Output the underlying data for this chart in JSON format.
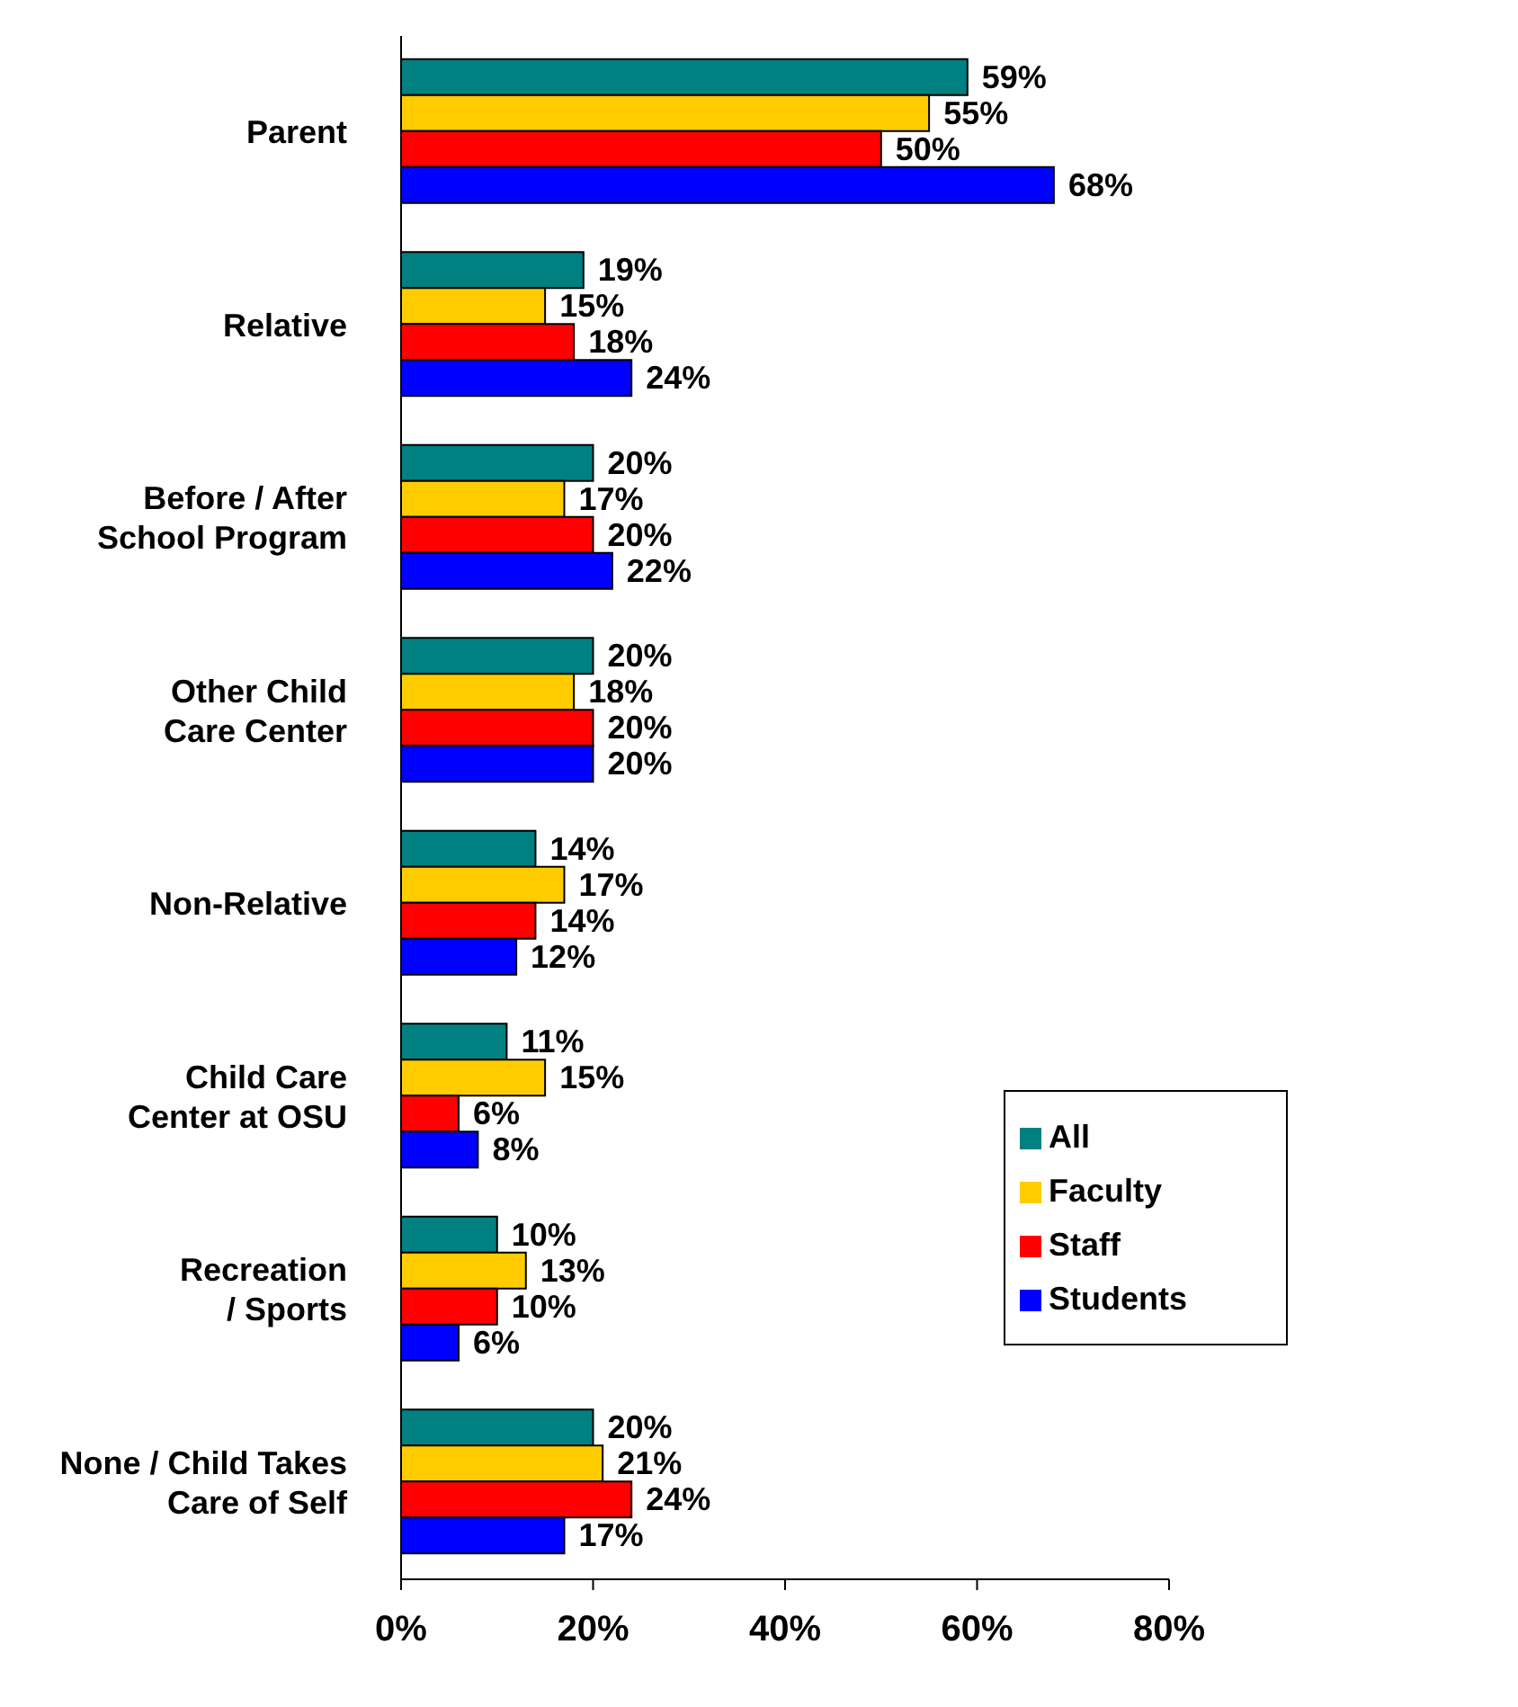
{
  "chart_data": {
    "type": "bar",
    "orientation": "horizontal",
    "categories": [
      "Parent",
      "Relative",
      "Before / After School Program",
      "Other Child Care Center",
      "Non-Relative",
      "Child Care Center at OSU",
      "Recreation / Sports",
      "None / Child Takes Care of Self"
    ],
    "series": [
      {
        "name": "All",
        "color": "#008080",
        "values": [
          59,
          19,
          20,
          20,
          14,
          11,
          10,
          20
        ],
        "value_labels": [
          "59%",
          "19%",
          "20%",
          "20%",
          "14%",
          "11%",
          "10%",
          "20%"
        ]
      },
      {
        "name": "Faculty",
        "color": "#ffcc00",
        "values": [
          55,
          15,
          17,
          18,
          17,
          15,
          13,
          21
        ],
        "value_labels": [
          "55%",
          "15%",
          "17%",
          "18%",
          "17%",
          "15%",
          "13%",
          "21%"
        ]
      },
      {
        "name": "Staff",
        "color": "#ff0000",
        "values": [
          50,
          18,
          20,
          20,
          14,
          6,
          10,
          24
        ],
        "value_labels": [
          "50%",
          "18%",
          "20%",
          "20%",
          "14%",
          "6%",
          "10%",
          "24%"
        ]
      },
      {
        "name": "Students",
        "color": "#0000ff",
        "values": [
          68,
          24,
          22,
          20,
          12,
          8,
          6,
          17
        ],
        "value_labels": [
          "68%",
          "24%",
          "22%",
          "20%",
          "12%",
          "8%",
          "6%",
          "17%"
        ]
      }
    ],
    "xlim": [
      0,
      80
    ],
    "xticks": [
      {
        "value": 0,
        "label": "0%"
      },
      {
        "value": 20,
        "label": "20%"
      },
      {
        "value": 40,
        "label": "40%"
      },
      {
        "value": 60,
        "label": "60%"
      },
      {
        "value": 80,
        "label": "80%"
      }
    ],
    "grid": false,
    "legend": "right"
  }
}
